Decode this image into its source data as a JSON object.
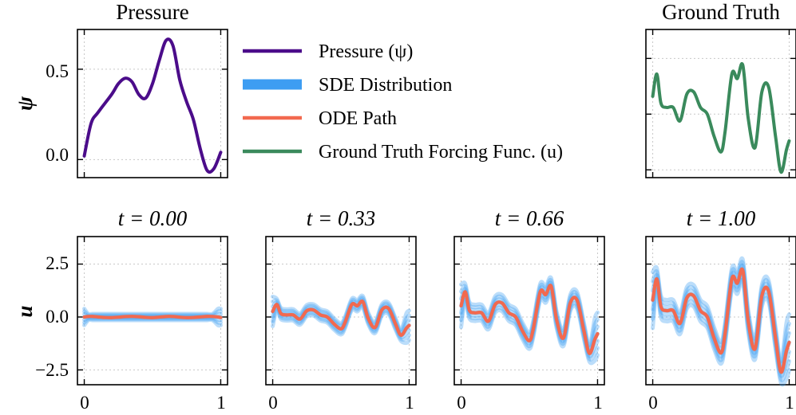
{
  "colors": {
    "pressure": "#4b0c8a",
    "sde": "#3d9df2",
    "ode": "#f2694f",
    "ground_truth": "#3a8a5c",
    "grid": "#c8c8c8",
    "axis": "#000000"
  },
  "legend": {
    "pressure": "Pressure (ψ)",
    "sde": "SDE Distribution",
    "ode": "ODE Path",
    "ground_truth": "Ground Truth Forcing Func. (u)"
  },
  "chart_data": [
    {
      "id": "pressure",
      "type": "line",
      "title": "Pressure",
      "ylabel": "ψ",
      "xlim": [
        -0.05,
        1.05
      ],
      "ylim": [
        -0.1,
        0.72
      ],
      "yticks": [
        0.0,
        0.5
      ],
      "ytick_labels": [
        "0.0",
        "0.5"
      ],
      "xticks": [
        0,
        1
      ],
      "grid": true,
      "series": [
        {
          "name": "Pressure (ψ)",
          "x": [
            0.0,
            0.05,
            0.1,
            0.2,
            0.25,
            0.3,
            0.35,
            0.4,
            0.45,
            0.5,
            0.55,
            0.6,
            0.65,
            0.7,
            0.75,
            0.8,
            0.85,
            0.9,
            0.95,
            1.0
          ],
          "values": [
            0.02,
            0.2,
            0.26,
            0.36,
            0.42,
            0.45,
            0.43,
            0.36,
            0.34,
            0.42,
            0.55,
            0.66,
            0.63,
            0.44,
            0.32,
            0.22,
            0.06,
            -0.06,
            -0.05,
            0.04
          ]
        }
      ]
    },
    {
      "id": "ground_truth",
      "type": "line",
      "title": "Ground Truth",
      "xlim": [
        -0.05,
        1.05
      ],
      "ylim": [
        -2.85,
        3.8
      ],
      "yticks": [
        -2.5,
        0.0,
        2.5
      ],
      "xticks": [
        0,
        1
      ],
      "grid": true,
      "series": [
        {
          "name": "Ground Truth Forcing Func. (u)",
          "x": [
            0.0,
            0.03,
            0.06,
            0.1,
            0.15,
            0.2,
            0.25,
            0.3,
            0.35,
            0.4,
            0.45,
            0.5,
            0.53,
            0.58,
            0.62,
            0.66,
            0.7,
            0.75,
            0.8,
            0.85,
            0.9,
            0.94,
            0.98,
            1.0
          ],
          "values": [
            0.8,
            1.8,
            0.5,
            0.3,
            0.3,
            -0.3,
            0.9,
            1.0,
            0.3,
            0.0,
            -1.0,
            -1.7,
            -0.8,
            1.8,
            1.6,
            2.2,
            -0.2,
            -1.5,
            1.0,
            1.2,
            -1.0,
            -2.6,
            -1.6,
            -1.2
          ]
        }
      ]
    },
    {
      "id": "t0",
      "type": "line",
      "title": "t = 0.00",
      "ylabel": "u",
      "xlim": [
        -0.05,
        1.05
      ],
      "ylim": [
        -3.2,
        3.8
      ],
      "yticks": [
        -2.5,
        0.0,
        2.5
      ],
      "ytick_labels": [
        "−2.5",
        "0.0",
        "2.5"
      ],
      "xticks": [
        0,
        1
      ],
      "xtick_labels": [
        "0",
        "1"
      ],
      "grid": true,
      "scale": 0.0,
      "series": [
        {
          "name": "ODE Path"
        },
        {
          "name": "SDE Distribution"
        }
      ]
    },
    {
      "id": "t033",
      "type": "line",
      "title": "t = 0.33",
      "xlim": [
        -0.05,
        1.05
      ],
      "ylim": [
        -3.2,
        3.8
      ],
      "yticks": [
        -2.5,
        0.0,
        2.5
      ],
      "xticks": [
        0,
        1
      ],
      "xtick_labels": [
        "0",
        "1"
      ],
      "grid": true,
      "scale": 0.33,
      "series": [
        {
          "name": "ODE Path"
        },
        {
          "name": "SDE Distribution"
        }
      ]
    },
    {
      "id": "t066",
      "type": "line",
      "title": "t = 0.66",
      "xlim": [
        -0.05,
        1.05
      ],
      "ylim": [
        -3.2,
        3.8
      ],
      "yticks": [
        -2.5,
        0.0,
        2.5
      ],
      "xticks": [
        0,
        1
      ],
      "xtick_labels": [
        "0",
        "1"
      ],
      "grid": true,
      "scale": 0.66,
      "series": [
        {
          "name": "ODE Path"
        },
        {
          "name": "SDE Distribution"
        }
      ]
    },
    {
      "id": "t100",
      "type": "line",
      "title": "t = 1.00",
      "xlim": [
        -0.05,
        1.05
      ],
      "ylim": [
        -3.2,
        3.8
      ],
      "yticks": [
        -2.5,
        0.0,
        2.5
      ],
      "xticks": [
        0,
        1
      ],
      "xtick_labels": [
        "0",
        "1"
      ],
      "grid": true,
      "scale": 1.0,
      "series": [
        {
          "name": "ODE Path"
        },
        {
          "name": "SDE Distribution"
        }
      ]
    }
  ]
}
